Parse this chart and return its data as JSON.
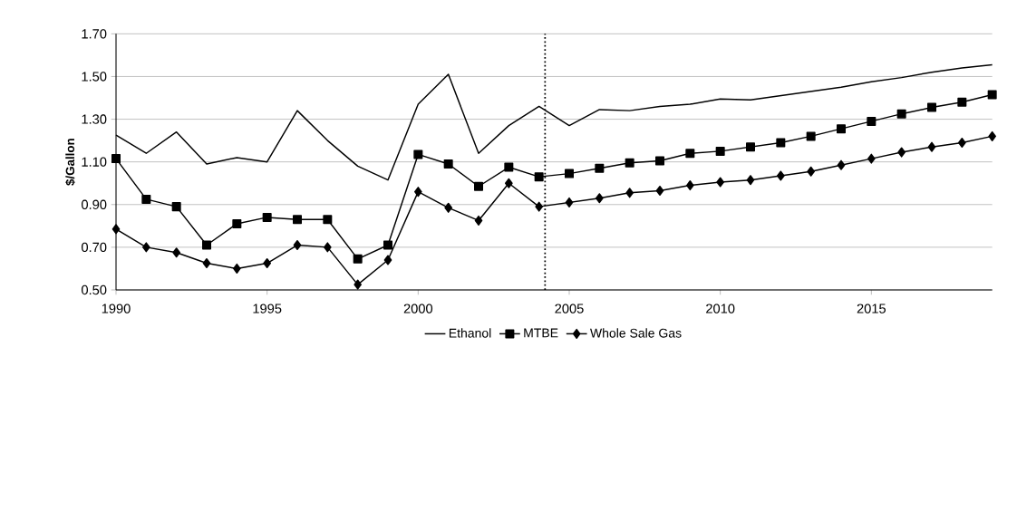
{
  "chart_data": {
    "type": "line",
    "ylabel": "$/Gallon",
    "x": [
      1990,
      1991,
      1992,
      1993,
      1994,
      1995,
      1996,
      1997,
      1998,
      1999,
      2000,
      2001,
      2002,
      2003,
      2004,
      2005,
      2006,
      2007,
      2008,
      2009,
      2010,
      2011,
      2012,
      2013,
      2014,
      2015,
      2016,
      2017,
      2018,
      2019
    ],
    "xlim": [
      1990,
      2019
    ],
    "xticks": [
      1990,
      1995,
      2000,
      2005,
      2010,
      2015
    ],
    "ylim": [
      0.5,
      1.7
    ],
    "yticks": [
      {
        "value": 0.5,
        "label": "0.50"
      },
      {
        "value": 0.7,
        "label": "0.70"
      },
      {
        "value": 0.9,
        "label": "0.90"
      },
      {
        "value": 1.1,
        "label": "1.10"
      },
      {
        "value": 1.3,
        "label": "1.30"
      },
      {
        "value": 1.5,
        "label": "1.50"
      },
      {
        "value": 1.7,
        "label": "1.70"
      }
    ],
    "grid": "y",
    "legend": "bottom",
    "line_style": "solid",
    "ref_lines": [
      {
        "axis": "x",
        "value": 2004.2,
        "line_style": "dotted",
        "color": "#000000"
      }
    ],
    "series": [
      {
        "name": "Ethanol",
        "color": "#000000",
        "marker": "none",
        "values": [
          1.225,
          1.14,
          1.24,
          1.09,
          1.12,
          1.1,
          1.34,
          1.2,
          1.08,
          1.015,
          1.37,
          1.51,
          1.14,
          1.27,
          1.36,
          1.27,
          1.345,
          1.34,
          1.36,
          1.37,
          1.395,
          1.39,
          1.41,
          1.43,
          1.45,
          1.475,
          1.495,
          1.52,
          1.54,
          1.555
        ]
      },
      {
        "name": "MTBE",
        "color": "#000000",
        "marker": "square",
        "values": [
          1.115,
          0.925,
          0.89,
          0.71,
          0.81,
          0.84,
          0.83,
          0.83,
          0.645,
          0.71,
          1.135,
          1.09,
          0.985,
          1.075,
          1.03,
          1.045,
          1.07,
          1.095,
          1.105,
          1.14,
          1.15,
          1.17,
          1.19,
          1.22,
          1.255,
          1.29,
          1.325,
          1.355,
          1.38,
          1.415
        ]
      },
      {
        "name": "Whole Sale Gas",
        "color": "#000000",
        "marker": "diamond",
        "values": [
          0.785,
          0.7,
          0.675,
          0.625,
          0.6,
          0.625,
          0.71,
          0.7,
          0.525,
          0.64,
          0.96,
          0.885,
          0.825,
          1.0,
          0.89,
          0.91,
          0.93,
          0.955,
          0.965,
          0.99,
          1.005,
          1.015,
          1.035,
          1.055,
          1.085,
          1.115,
          1.145,
          1.17,
          1.19,
          1.22
        ]
      }
    ]
  }
}
